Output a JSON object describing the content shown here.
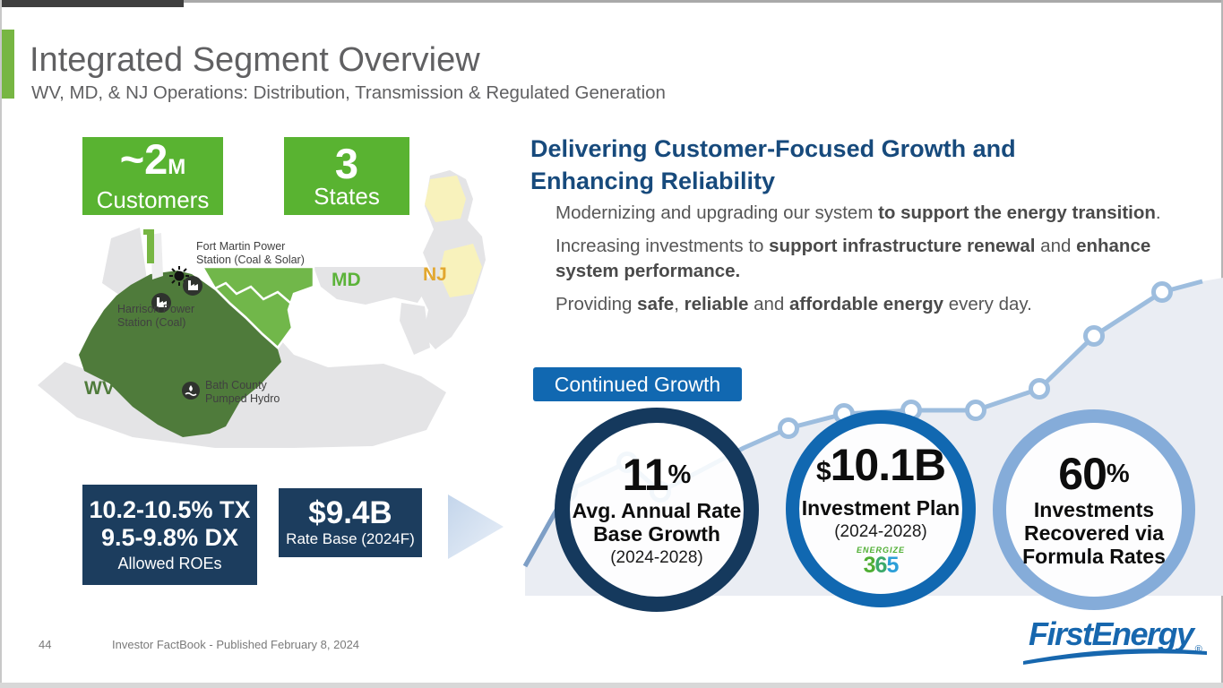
{
  "header": {
    "title": "Integrated Segment Overview",
    "subtitle": "WV, MD, & NJ Operations: Distribution, Transmission & Regulated Generation"
  },
  "stat_boxes": [
    {
      "value": "~2",
      "unit": "M",
      "label": "Customers"
    },
    {
      "value": "3",
      "unit": "",
      "label": "States"
    }
  ],
  "map": {
    "wv_label": "WV",
    "md_label": "MD",
    "nj_label": "NJ",
    "fort_martin": {
      "line1": "Fort Martin Power",
      "line2": "Station (Coal & Solar)"
    },
    "harrison": {
      "line1": "Harrison Power",
      "line2": "Station (Coal)"
    },
    "bath": {
      "line1": "Bath County",
      "line2": "Pumped Hydro"
    }
  },
  "roe_box": {
    "line1": "10.2-10.5% TX",
    "line2": "9.5-9.8% DX",
    "caption": "Allowed ROEs"
  },
  "rate_base_box": {
    "value": "$9.4B",
    "caption": "Rate Base (2024F)"
  },
  "growth": {
    "heading_line1": "Delivering Customer-Focused Growth and",
    "heading_line2": "Enhancing Reliability",
    "bullets": [
      {
        "segments": [
          {
            "text": "Modernizing and upgrading our system ",
            "bold": false
          },
          {
            "text": "to support the energy transition",
            "bold": true
          },
          {
            "text": ".",
            "bold": false
          }
        ]
      },
      {
        "segments": [
          {
            "text": "Increasing investments to ",
            "bold": false
          },
          {
            "text": "support infrastructure renewal",
            "bold": true
          },
          {
            "text": " and ",
            "bold": false
          },
          {
            "text": "enhance system performance.",
            "bold": true
          }
        ]
      },
      {
        "segments": [
          {
            "text": "Providing ",
            "bold": false
          },
          {
            "text": "safe",
            "bold": true
          },
          {
            "text": ", ",
            "bold": false
          },
          {
            "text": "reliable",
            "bold": true
          },
          {
            "text": " and ",
            "bold": false
          },
          {
            "text": "affordable energy",
            "bold": true
          },
          {
            "text": " every day.",
            "bold": false
          }
        ]
      }
    ],
    "badge": "Continued Growth",
    "circles": [
      {
        "prefix": "",
        "big": "11",
        "suffix": "%",
        "label_lines": [
          "Avg. Annual Rate",
          "Base Growth"
        ],
        "sub": "(2024-2028)"
      },
      {
        "prefix": "$",
        "big": "10.1B",
        "suffix": "",
        "label_lines": [
          "Investment Plan"
        ],
        "sub": "(2024-2028)",
        "logo_top": "ENERGIZE",
        "logo_digits": [
          "3",
          "6",
          "5"
        ]
      },
      {
        "prefix": "",
        "big": "60",
        "suffix": "%",
        "label_lines": [
          "Investments",
          "Recovered via",
          "Formula Rates"
        ],
        "sub": ""
      }
    ]
  },
  "footer": {
    "page_number": "44",
    "text": "Investor FactBook - Published February 8, 2024",
    "brand": "FirstEnergy",
    "registered": "®"
  },
  "colors": {
    "stat_green": "#59B331",
    "accent_green": "#77B643",
    "navy_box": "#1C3D5E",
    "heading_navy": "#174A7C",
    "badge_blue": "#1168B1",
    "circle1_ring": "#15395D",
    "circle2_ring": "#1168B1",
    "circle3_ring": "#85ACD9",
    "map_dark_green": "#4F7B3B",
    "map_light_green": "#71B74A",
    "nj_yellow": "#F8F2BC",
    "state_gray": "#E4E4E6",
    "logo_blue": "#1767AE"
  }
}
